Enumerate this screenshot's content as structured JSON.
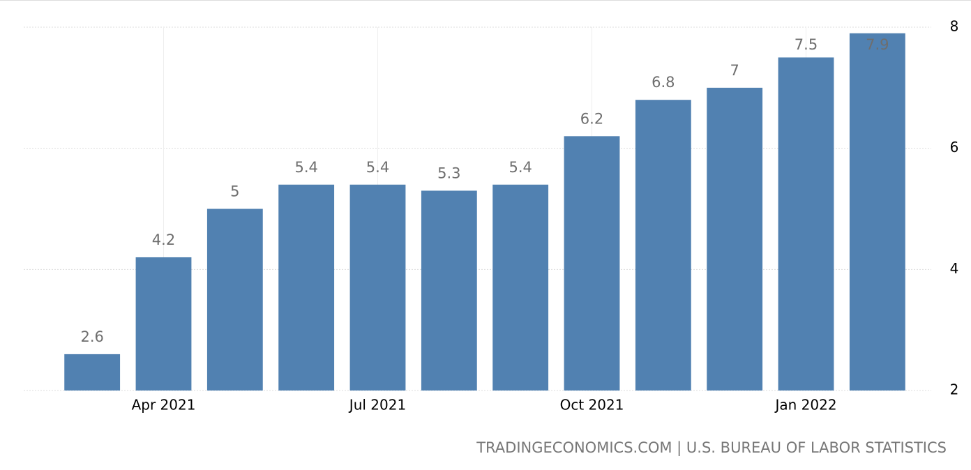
{
  "chart_data": {
    "type": "bar",
    "categories": [
      null,
      "Apr 2021",
      null,
      null,
      "Jul 2021",
      null,
      null,
      "Oct 2021",
      null,
      null,
      "Jan 2022",
      null
    ],
    "values": [
      2.6,
      4.2,
      5,
      5.4,
      5.4,
      5.3,
      5.4,
      6.2,
      6.8,
      7,
      7.5,
      7.9
    ],
    "color": "#5181b1",
    "ylim": [
      2,
      8
    ],
    "yticks": [
      2,
      4,
      6,
      8
    ],
    "grid": true,
    "source": "TRADINGECONOMICS.COM | U.S. BUREAU OF LABOR STATISTICS"
  }
}
